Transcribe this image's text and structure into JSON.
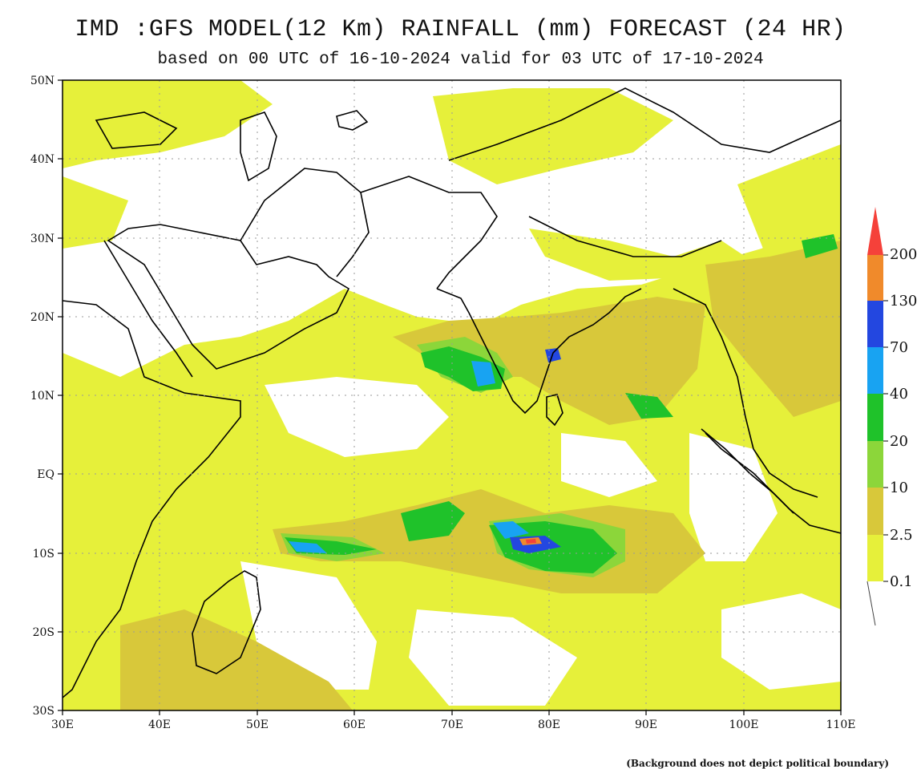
{
  "header": {
    "title": "IMD :GFS MODEL(12 Km) RAINFALL (mm) FORECAST (24 HR)",
    "subtitle": "based on 00 UTC of 16-10-2024 valid for 03 UTC of 17-10-2024"
  },
  "map": {
    "lat_labels": [
      "50N",
      "40N",
      "30N",
      "20N",
      "10N",
      "EQ",
      "10S",
      "20S",
      "30S"
    ],
    "lon_labels": [
      "30E",
      "40E",
      "50E",
      "60E",
      "70E",
      "80E",
      "90E",
      "100E",
      "110E"
    ],
    "extent": {
      "lon": [
        30,
        110
      ],
      "lat": [
        -30,
        50
      ]
    }
  },
  "legend": {
    "levels": [
      "200",
      "130",
      "70",
      "40",
      "20",
      "10",
      "2.5",
      "0.1"
    ],
    "colors": {
      "over_200": "#f5413a",
      "130_200": "#f08a2b",
      "70_130": "#2347e0",
      "40_70": "#18a3f2",
      "20_40": "#1fc22a",
      "10_20": "#8cd63a",
      "2.5_10": "#d8c83a",
      "0.1_2.5": "#e6f03a"
    }
  },
  "footer": {
    "disclaimer": "(Background does not depict political boundary)"
  }
}
